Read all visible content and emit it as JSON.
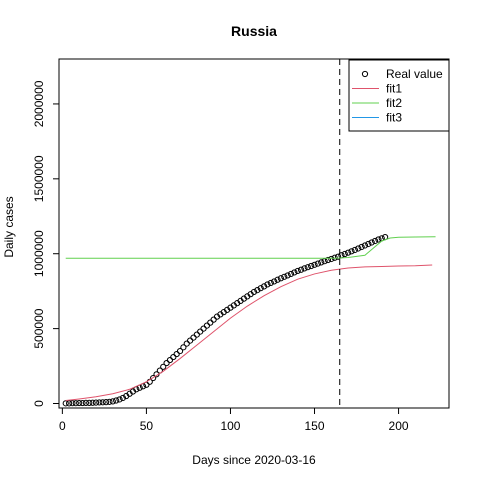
{
  "chart_data": {
    "type": "line",
    "title": "Russia",
    "xlabel": "Days since 2020-03-16",
    "ylabel": "Daily cases",
    "xlim": [
      -2,
      230
    ],
    "ylim": [
      -30000,
      2300000
    ],
    "xticks": [
      0,
      50,
      100,
      150,
      200
    ],
    "yticks": [
      0,
      500000,
      1000000,
      1500000,
      2000000
    ],
    "grid": false,
    "legend_position": "top-right",
    "vline": {
      "x": 165,
      "style": "dashed",
      "color": "#000000"
    },
    "series": [
      {
        "name": "Real value",
        "kind": "points",
        "color": "#000000",
        "x": [
          2,
          4,
          6,
          8,
          10,
          12,
          14,
          16,
          18,
          20,
          22,
          24,
          26,
          28,
          30,
          32,
          34,
          36,
          38,
          40,
          42,
          44,
          46,
          48,
          50,
          52,
          54,
          56,
          58,
          60,
          62,
          64,
          66,
          68,
          70,
          72,
          74,
          76,
          78,
          80,
          82,
          84,
          86,
          88,
          90,
          92,
          94,
          96,
          98,
          100,
          102,
          104,
          106,
          108,
          110,
          112,
          114,
          116,
          118,
          120,
          122,
          124,
          126,
          128,
          130,
          132,
          134,
          136,
          138,
          140,
          142,
          144,
          146,
          148,
          150,
          152,
          154,
          156,
          158,
          160,
          162,
          164,
          166,
          168,
          170,
          172,
          174,
          176,
          178,
          180,
          182,
          184,
          186,
          188,
          190,
          192
        ],
        "y": [
          1000,
          1000,
          2000,
          2000,
          3000,
          3000,
          4000,
          4000,
          5000,
          6000,
          7000,
          8000,
          9000,
          11000,
          14000,
          20000,
          27000,
          37000,
          50000,
          65000,
          80000,
          95000,
          105000,
          115000,
          125000,
          145000,
          170000,
          195000,
          220000,
          245000,
          270000,
          290000,
          310000,
          330000,
          350000,
          375000,
          400000,
          420000,
          440000,
          460000,
          480000,
          500000,
          520000,
          540000,
          560000,
          580000,
          595000,
          610000,
          625000,
          640000,
          655000,
          670000,
          685000,
          700000,
          715000,
          730000,
          745000,
          757000,
          770000,
          782000,
          795000,
          805000,
          815000,
          826000,
          836000,
          846000,
          855000,
          865000,
          875000,
          885000,
          893000,
          902000,
          910000,
          918000,
          926000,
          934000,
          942000,
          950000,
          958000,
          965000,
          973000,
          980000,
          990000,
          998000,
          1007000,
          1016000,
          1025000,
          1035000,
          1045000,
          1055000,
          1065000,
          1075000,
          1085000,
          1095000,
          1103000,
          1111000
        ]
      },
      {
        "name": "fit1",
        "kind": "line",
        "color": "#df536b",
        "x": [
          2,
          10,
          20,
          30,
          40,
          50,
          60,
          70,
          80,
          90,
          100,
          110,
          120,
          130,
          140,
          150,
          160,
          170,
          180,
          190,
          200,
          210,
          220
        ],
        "y": [
          20000,
          30000,
          45000,
          65000,
          95000,
          145000,
          215000,
          300000,
          390000,
          480000,
          570000,
          650000,
          720000,
          780000,
          830000,
          865000,
          890000,
          905000,
          912000,
          915000,
          918000,
          920000,
          925000
        ]
      },
      {
        "name": "fit2",
        "kind": "line",
        "color": "#61d04f",
        "x": [
          2,
          20,
          40,
          60,
          80,
          100,
          120,
          140,
          160,
          165,
          170,
          180,
          190,
          195,
          200,
          210,
          222
        ],
        "y": [
          970000,
          970000,
          970000,
          970000,
          970000,
          970000,
          970000,
          970000,
          970000,
          971000,
          975000,
          990000,
          1085000,
          1105000,
          1110000,
          1112000,
          1113000
        ]
      },
      {
        "name": "fit3",
        "kind": "line",
        "color": "#2297e6",
        "x": [],
        "y": []
      }
    ]
  }
}
